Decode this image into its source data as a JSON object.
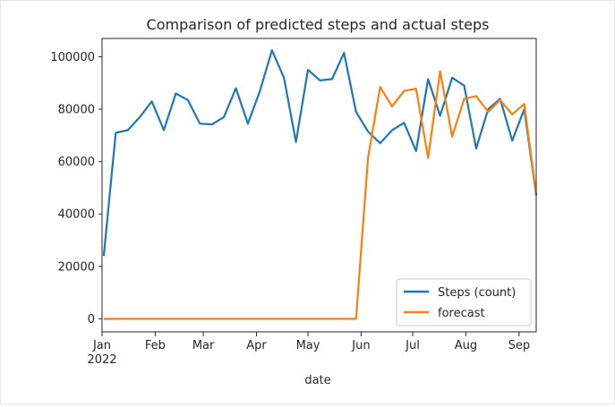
{
  "chart_data": {
    "type": "line",
    "title": "Comparison of predicted steps and actual steps",
    "xlabel": "date",
    "ylabel": "",
    "x_range": [
      "2022-01-01",
      "2022-09-11"
    ],
    "ylim": [
      -5000,
      107000
    ],
    "y_ticks": [
      0,
      20000,
      40000,
      60000,
      80000,
      100000
    ],
    "y_tick_labels": [
      "0",
      "20000",
      "40000",
      "60000",
      "80000",
      "100000"
    ],
    "x_ticks": [
      {
        "date": "2022-01-01",
        "label": "Jan",
        "sublabel": "2022"
      },
      {
        "date": "2022-02-01",
        "label": "Feb",
        "sublabel": ""
      },
      {
        "date": "2022-03-01",
        "label": "Mar",
        "sublabel": ""
      },
      {
        "date": "2022-04-01",
        "label": "Apr",
        "sublabel": ""
      },
      {
        "date": "2022-05-01",
        "label": "May",
        "sublabel": ""
      },
      {
        "date": "2022-06-01",
        "label": "Jun",
        "sublabel": ""
      },
      {
        "date": "2022-07-01",
        "label": "Jul",
        "sublabel": ""
      },
      {
        "date": "2022-08-01",
        "label": "Aug",
        "sublabel": ""
      },
      {
        "date": "2022-09-01",
        "label": "Sep",
        "sublabel": ""
      }
    ],
    "legend_position": "lower-right",
    "grid": false,
    "x": [
      "2022-01-02",
      "2022-01-09",
      "2022-01-16",
      "2022-01-23",
      "2022-01-30",
      "2022-02-06",
      "2022-02-13",
      "2022-02-20",
      "2022-02-27",
      "2022-03-06",
      "2022-03-13",
      "2022-03-20",
      "2022-03-27",
      "2022-04-03",
      "2022-04-10",
      "2022-04-17",
      "2022-04-24",
      "2022-05-01",
      "2022-05-08",
      "2022-05-15",
      "2022-05-22",
      "2022-05-29",
      "2022-06-05",
      "2022-06-12",
      "2022-06-19",
      "2022-06-26",
      "2022-07-03",
      "2022-07-10",
      "2022-07-17",
      "2022-07-24",
      "2022-07-31",
      "2022-08-07",
      "2022-08-14",
      "2022-08-21",
      "2022-08-28",
      "2022-09-04",
      "2022-09-11"
    ],
    "series": [
      {
        "name": "Steps (count)",
        "color": "#1f77b4",
        "values": [
          24000,
          71000,
          72000,
          77000,
          83000,
          72000,
          86000,
          83500,
          74500,
          74200,
          77000,
          88000,
          74500,
          87000,
          102500,
          92000,
          67500,
          95000,
          91000,
          91500,
          101500,
          79000,
          71500,
          67000,
          72000,
          74800,
          64000,
          91500,
          77500,
          92000,
          89000,
          65000,
          80000,
          84000,
          68000,
          80000,
          47000
        ]
      },
      {
        "name": "forecast",
        "color": "#ff7f0e",
        "values": [
          0,
          0,
          0,
          0,
          0,
          0,
          0,
          0,
          0,
          0,
          0,
          0,
          0,
          0,
          0,
          0,
          0,
          0,
          0,
          0,
          0,
          0,
          61500,
          88500,
          81000,
          87000,
          87800,
          61500,
          94500,
          69500,
          84000,
          85000,
          79000,
          83500,
          78000,
          82000,
          47500
        ]
      }
    ]
  }
}
